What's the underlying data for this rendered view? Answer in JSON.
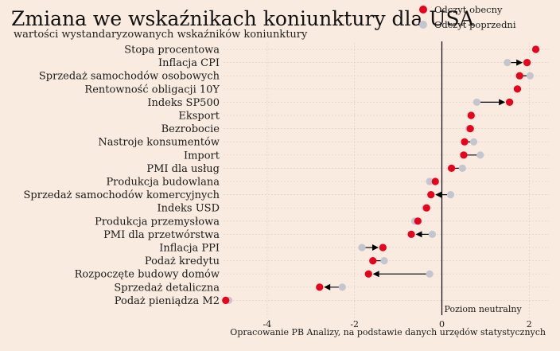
{
  "chart_data": {
    "type": "dot-arrow",
    "title": "Zmiana we wskaźnikach koniunktury dla USA",
    "subtitle": "wartości wystandaryzowanych wskaźników koniunktury",
    "source": "Opracowanie PB Analizy, na podstawie danych urzędów statystycznych",
    "neutral_label": "Poziom neutralny",
    "x_ticks": [
      -4,
      -2,
      0,
      2
    ],
    "xlim": [
      -5.0,
      2.45
    ],
    "legend": {
      "placement": "top-right",
      "items": [
        {
          "label": "Odczyt obecny",
          "color": "#e8001c"
        },
        {
          "label": "Odczyt poprzedni",
          "color": "#c4c6cf"
        }
      ]
    },
    "colors": {
      "current": "#e8001c",
      "previous": "#c4c6cf",
      "arrow": "#000000",
      "neutral_line": "#000000",
      "background": "#f9ebdf"
    },
    "rows": [
      {
        "label": "Stopa procentowa",
        "current": 2.15,
        "previous": 2.15
      },
      {
        "label": "Inflacja CPI",
        "current": 1.95,
        "previous": 1.5
      },
      {
        "label": "Sprzedaż samochodów osobowych",
        "current": 1.78,
        "previous": 2.02
      },
      {
        "label": "Rentowność obligacji 10Y",
        "current": 1.73,
        "previous": 1.73
      },
      {
        "label": "Indeks SP500",
        "current": 1.55,
        "previous": 0.8
      },
      {
        "label": "Eksport",
        "current": 0.67,
        "previous": 0.67
      },
      {
        "label": "Bezrobocie",
        "current": 0.65,
        "previous": 0.62
      },
      {
        "label": "Nastroje konsumentów",
        "current": 0.52,
        "previous": 0.73
      },
      {
        "label": "Import",
        "current": 0.5,
        "previous": 0.88
      },
      {
        "label": "PMI dla usług",
        "current": 0.22,
        "previous": 0.47
      },
      {
        "label": "Produkcja budowlana",
        "current": -0.15,
        "previous": -0.28
      },
      {
        "label": "Sprzedaż samochodów komercyjnych",
        "current": -0.25,
        "previous": 0.2
      },
      {
        "label": "Indeks USD",
        "current": -0.35,
        "previous": -0.38
      },
      {
        "label": "Produkcja przemysłowa",
        "current": -0.55,
        "previous": -0.62
      },
      {
        "label": "PMI dla przetwórstwa",
        "current": -0.7,
        "previous": -0.22
      },
      {
        "label": "Inflacja PPI",
        "current": -1.35,
        "previous": -1.83
      },
      {
        "label": "Podaż kredytu",
        "current": -1.58,
        "previous": -1.32
      },
      {
        "label": "Rozpoczęte budowy domów",
        "current": -1.68,
        "previous": -0.28
      },
      {
        "label": "Sprzedaż detaliczna",
        "current": -2.8,
        "previous": -2.28
      },
      {
        "label": "Podaż pieniądza M2",
        "current": -4.95,
        "previous": -4.88
      }
    ]
  }
}
